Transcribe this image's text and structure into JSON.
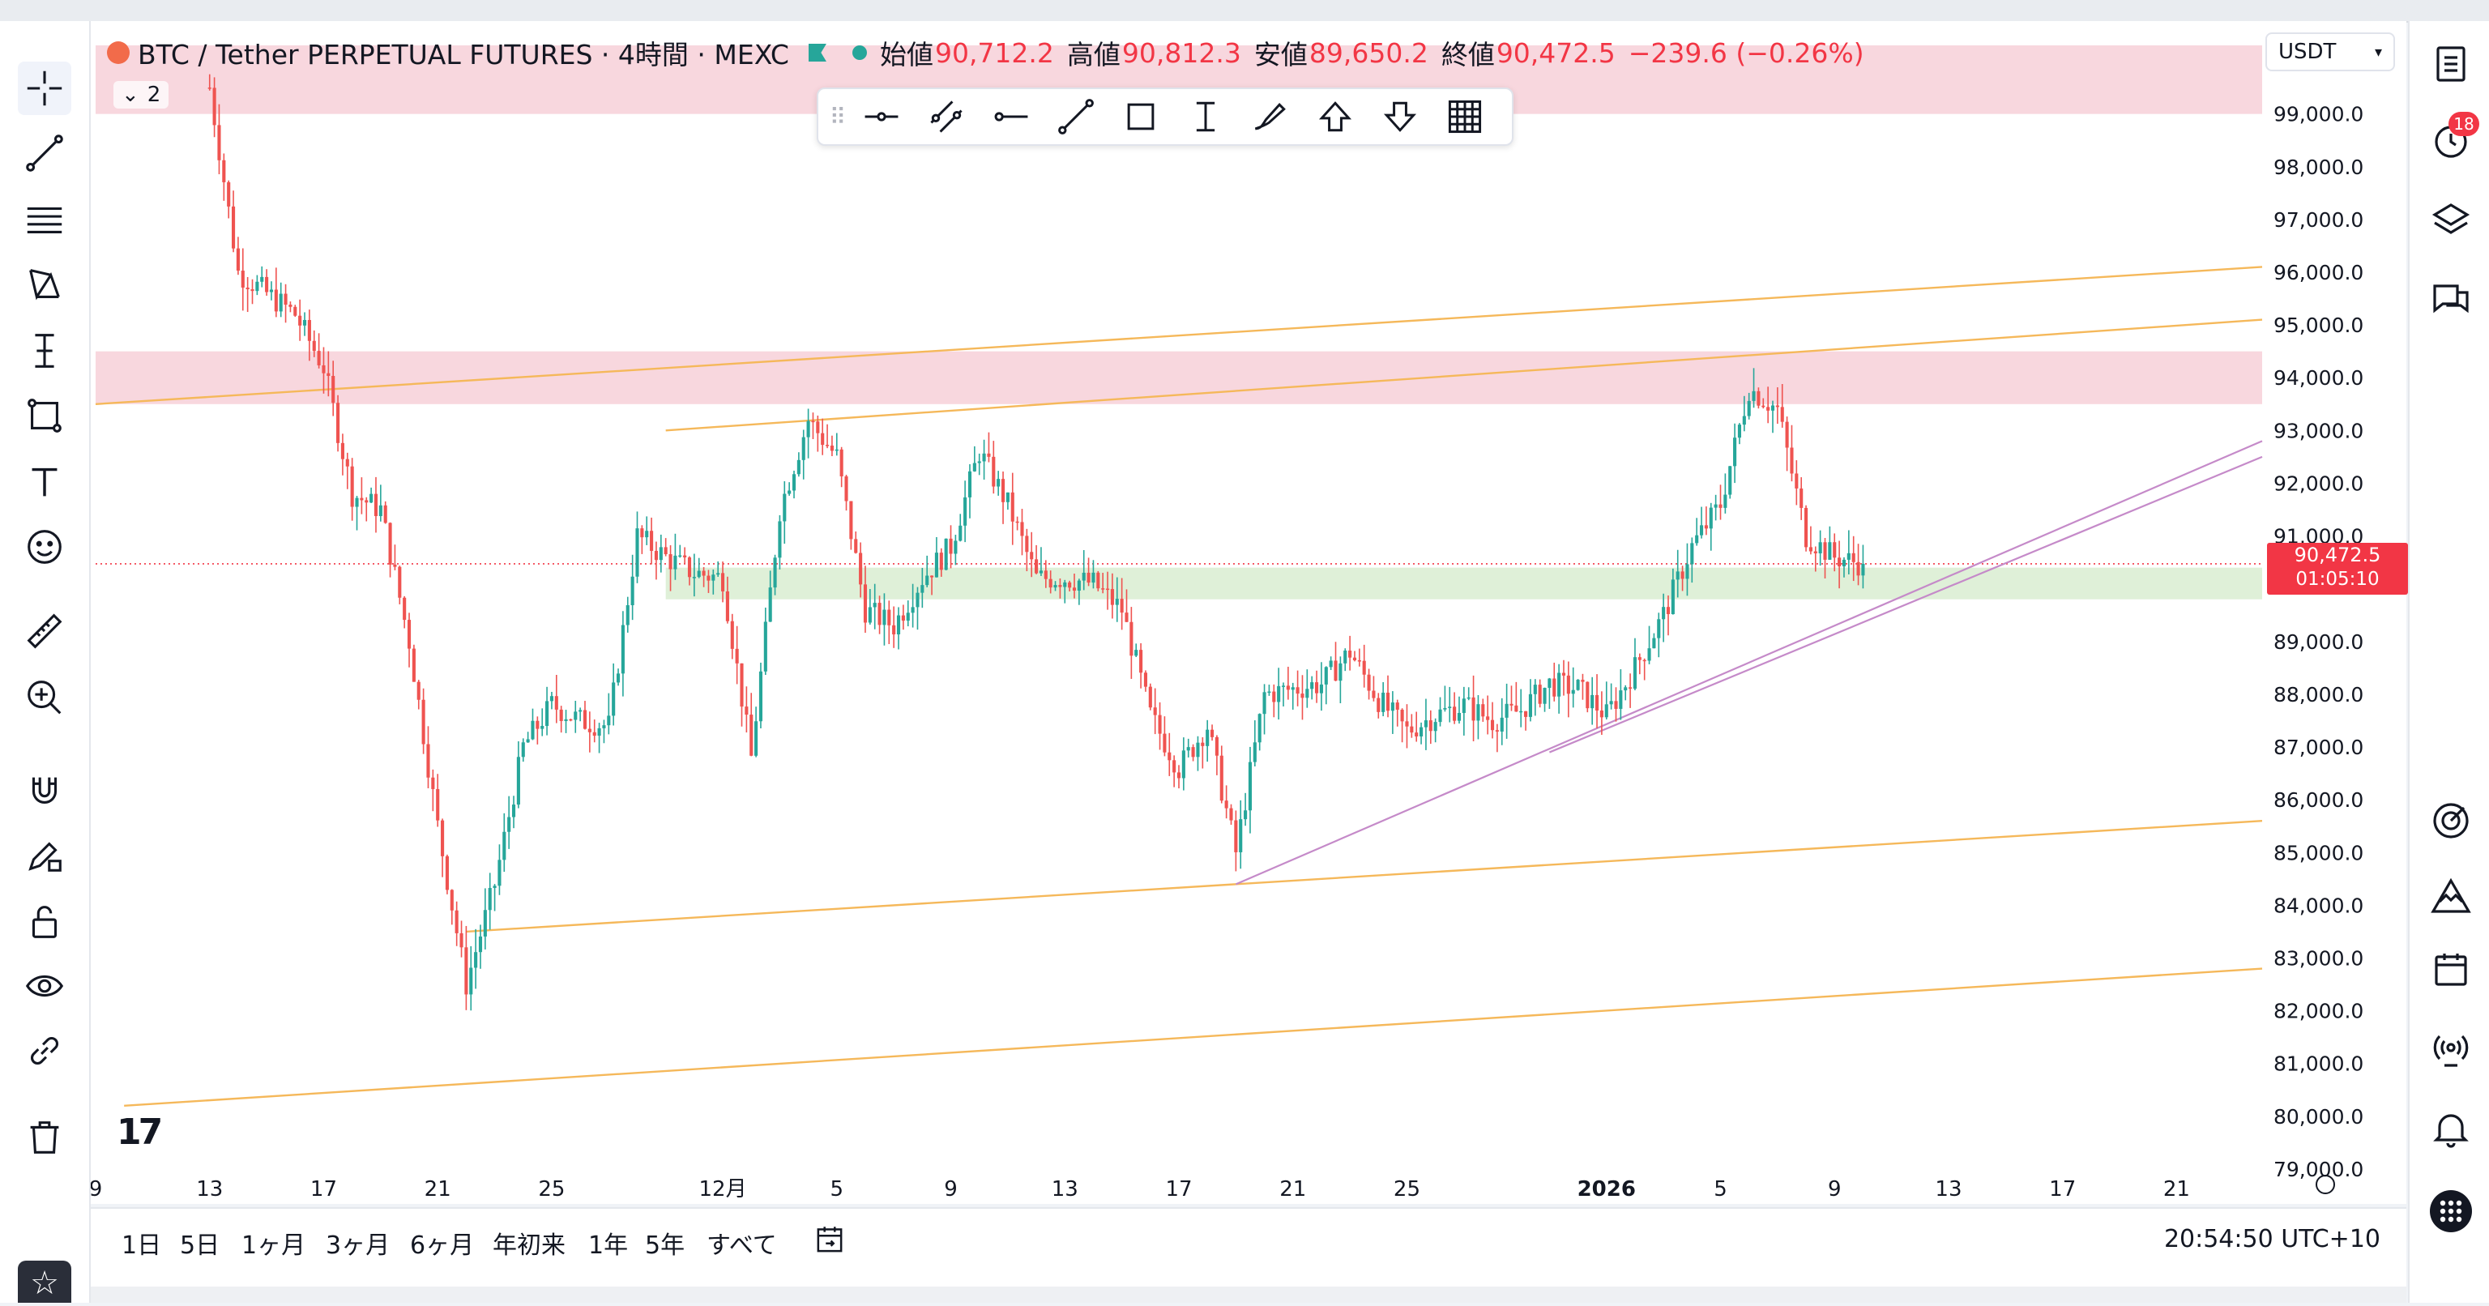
{
  "symbol": {
    "title": "BTC / Tether PERPETUAL FUTURES · 4時間 · MEXC",
    "open_label": "始値",
    "open_value": "90,712.2",
    "high_label": "高値",
    "high_value": "90,812.3",
    "low_label": "安値",
    "low_value": "89,650.2",
    "close_label": "終値",
    "close_value": "90,472.5",
    "change": "−239.6 (−0.26%)",
    "indicator_count": "2"
  },
  "currency": "USDT",
  "price_tag": {
    "price": "90,472.5",
    "countdown": "01:05:10"
  },
  "tv_logo": "17",
  "time_ranges": [
    "1日",
    "5日",
    "1ヶ月",
    "3ヶ月",
    "6ヶ月",
    "年初来",
    "1年",
    "5年",
    "すべて"
  ],
  "clock": "20:54:50 UTC+10",
  "notification_count": "18",
  "left_tools": [
    "crosshair-icon",
    "trend-line-icon",
    "fib-retracement-icon",
    "xabcd-pattern-icon",
    "long-position-icon",
    "rectangle-icon",
    "text-icon",
    "emoji-icon",
    "ruler-icon",
    "zoom-in-icon",
    "magnet-icon",
    "pencil-lock-icon",
    "lock-icon",
    "eye-icon",
    "link-icon",
    "trash-icon"
  ],
  "right_tools": [
    "watchlist-icon",
    "alerts-icon",
    "layers-icon",
    "chat-icon",
    "target-icon",
    "ideas-icon",
    "calendar-icon",
    "broadcast-icon",
    "bell-icon",
    "apps-icon"
  ],
  "drawing_toolbar": [
    "horizontal-ray-icon",
    "parallel-channel-icon",
    "horizontal-line-icon",
    "trend-line-icon",
    "rectangle-icon",
    "price-range-icon",
    "brush-icon",
    "arrow-up-icon",
    "arrow-down-icon",
    "grid-icon"
  ],
  "colors": {
    "up": "#26a69a",
    "down": "#ef5350",
    "channel": "#f5b85a",
    "trendline": "#c58ac9",
    "resistance_zone": "#f8d7de",
    "support_zone": "#dff0d8",
    "last_price": "#f23645"
  },
  "chart_data": {
    "type": "candlestick",
    "ylim": [
      78800,
      100300
    ],
    "y_ticks": [
      79000,
      80000,
      81000,
      82000,
      83000,
      84000,
      85000,
      86000,
      87000,
      88000,
      89000,
      90000,
      91000,
      92000,
      93000,
      94000,
      95000,
      96000,
      97000,
      98000,
      99000
    ],
    "y_tick_labels": [
      "79,000.0",
      "80,000.0",
      "81,000.0",
      "82,000.0",
      "83,000.0",
      "84,000.0",
      "85,000.0",
      "86,000.0",
      "87,000.0",
      "88,000.0",
      "89,000.0",
      "91,000.0",
      "92,000.0",
      "93,000.0",
      "94,000.0",
      "95,000.0",
      "96,000.0",
      "97,000.0",
      "98,000.0",
      "99,000.0"
    ],
    "x_ticks": [
      {
        "date": "2025-11-09",
        "label": "9"
      },
      {
        "date": "2025-11-13",
        "label": "13"
      },
      {
        "date": "2025-11-17",
        "label": "17"
      },
      {
        "date": "2025-11-21",
        "label": "21"
      },
      {
        "date": "2025-11-25",
        "label": "25"
      },
      {
        "date": "2025-12-01",
        "label": "12月"
      },
      {
        "date": "2025-12-05",
        "label": "5"
      },
      {
        "date": "2025-12-09",
        "label": "9"
      },
      {
        "date": "2025-12-13",
        "label": "13"
      },
      {
        "date": "2025-12-17",
        "label": "17"
      },
      {
        "date": "2025-12-21",
        "label": "21"
      },
      {
        "date": "2025-12-25",
        "label": "25"
      },
      {
        "date": "2026-01-01",
        "label": "2026"
      },
      {
        "date": "2026-01-05",
        "label": "5"
      },
      {
        "date": "2026-01-09",
        "label": "9"
      },
      {
        "date": "2026-01-13",
        "label": "13"
      },
      {
        "date": "2026-01-17",
        "label": "17"
      },
      {
        "date": "2026-01-21",
        "label": "21"
      }
    ],
    "xlim": [
      "2025-11-09",
      "2026-01-24"
    ],
    "close_path": [
      [
        "2025-11-13",
        99500
      ],
      [
        "2025-11-14",
        96000
      ],
      [
        "2025-11-15",
        95600
      ],
      [
        "2025-11-16",
        95200
      ],
      [
        "2025-11-17",
        94200
      ],
      [
        "2025-11-18",
        91800
      ],
      [
        "2025-11-19",
        91500
      ],
      [
        "2025-11-20",
        89000
      ],
      [
        "2025-11-21",
        85500
      ],
      [
        "2025-11-22",
        82500
      ],
      [
        "2025-11-23",
        84400
      ],
      [
        "2025-11-24",
        87000
      ],
      [
        "2025-11-25",
        87800
      ],
      [
        "2025-11-26",
        87500
      ],
      [
        "2025-11-27",
        87400
      ],
      [
        "2025-11-28",
        91000
      ],
      [
        "2025-11-29",
        90600
      ],
      [
        "2025-11-30",
        90300
      ],
      [
        "2025-12-01",
        90200
      ],
      [
        "2025-12-02",
        86800
      ],
      [
        "2025-12-03",
        91500
      ],
      [
        "2025-12-04",
        93200
      ],
      [
        "2025-12-05",
        92500
      ],
      [
        "2025-12-06",
        89600
      ],
      [
        "2025-12-07",
        89300
      ],
      [
        "2025-12-08",
        90200
      ],
      [
        "2025-12-09",
        90800
      ],
      [
        "2025-12-10",
        92600
      ],
      [
        "2025-12-11",
        91600
      ],
      [
        "2025-12-12",
        90200
      ],
      [
        "2025-12-13",
        90200
      ],
      [
        "2025-12-14",
        90100
      ],
      [
        "2025-12-15",
        89600
      ],
      [
        "2025-12-16",
        87600
      ],
      [
        "2025-12-17",
        86600
      ],
      [
        "2025-12-18",
        87400
      ],
      [
        "2025-12-19",
        85000
      ],
      [
        "2025-12-20",
        88000
      ],
      [
        "2025-12-21",
        88100
      ],
      [
        "2025-12-22",
        88200
      ],
      [
        "2025-12-23",
        88800
      ],
      [
        "2025-12-24",
        87900
      ],
      [
        "2025-12-25",
        87300
      ],
      [
        "2025-12-26",
        87600
      ],
      [
        "2025-12-27",
        87800
      ],
      [
        "2025-12-28",
        87500
      ],
      [
        "2025-12-29",
        87700
      ],
      [
        "2025-12-30",
        88200
      ],
      [
        "2025-12-31",
        88100
      ],
      [
        "2026-01-01",
        87600
      ],
      [
        "2026-01-02",
        88500
      ],
      [
        "2026-01-03",
        89500
      ],
      [
        "2026-01-04",
        90800
      ],
      [
        "2026-01-05",
        91600
      ],
      [
        "2026-01-06",
        93800
      ],
      [
        "2026-01-07",
        93400
      ],
      [
        "2026-01-08",
        91000
      ],
      [
        "2026-01-09",
        90600
      ],
      [
        "2026-01-10",
        90472.5
      ]
    ],
    "resistance_zone": [
      93500,
      94500
    ],
    "top_zone": [
      99000,
      100300
    ],
    "support_zone": [
      89800,
      90400
    ],
    "last_price": 90472.5,
    "channel_lines": [
      {
        "from": [
          "2025-11-09",
          93500
        ],
        "to": [
          "2026-01-24",
          96100
        ]
      },
      {
        "from": [
          "2025-11-29",
          93000
        ],
        "to": [
          "2026-01-24",
          95100
        ]
      },
      {
        "from": [
          "2025-11-22",
          83500
        ],
        "to": [
          "2026-01-24",
          85600
        ]
      },
      {
        "from": [
          "2025-11-10",
          80200
        ],
        "to": [
          "2026-01-24",
          82800
        ]
      }
    ],
    "trend_lines": [
      {
        "from": [
          "2025-12-19",
          84400
        ],
        "to": [
          "2026-01-24",
          92800
        ]
      },
      {
        "from": [
          "2025-12-30",
          86900
        ],
        "to": [
          "2026-01-24",
          92500
        ]
      }
    ]
  }
}
